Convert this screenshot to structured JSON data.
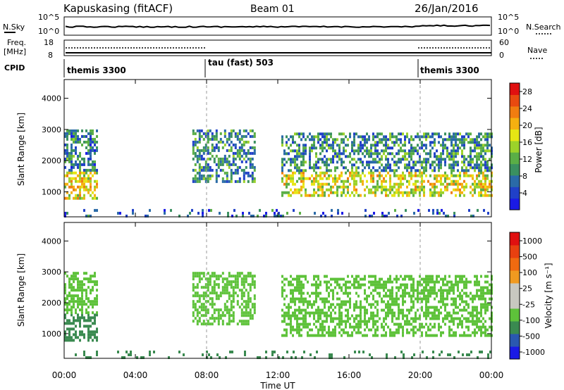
{
  "header": {
    "station": "Kapuskasing (fitACF)",
    "beam": "Beam 01",
    "date": "26/Jan/2016"
  },
  "panels": {
    "nsky": {
      "label": "N.Sky",
      "left_ticks": [
        "10^5",
        "10^0"
      ],
      "right_ticks": [
        "10^5",
        "10^0"
      ],
      "right_label": "N.Search"
    },
    "freq": {
      "label_top": "Freq.",
      "label_unit": "[MHz]",
      "left_ticks": [
        "18",
        "8"
      ],
      "right_ticks": [
        "60",
        "0"
      ],
      "right_label": "Nave"
    },
    "cpid": {
      "label": "CPID",
      "segments": [
        {
          "text": "themis 3300",
          "start_hour": 0
        },
        {
          "text": "tau (fast) 503",
          "start_hour": 8
        },
        {
          "text": "themis 3300",
          "start_hour": 20
        }
      ]
    }
  },
  "chart_data": [
    {
      "type": "heatmap",
      "name_key": "power",
      "ylabel": "Slant Range [km]",
      "ylim": [
        200,
        4600
      ],
      "y_ticks": [
        1000,
        2000,
        3000,
        4000
      ],
      "xlim_hours": [
        0,
        24
      ],
      "colorbar": {
        "label": "Power [dB]",
        "ticks": [
          4,
          8,
          12,
          16,
          20,
          24,
          28
        ],
        "range": [
          0,
          30
        ],
        "colors": [
          "#1a1ae6",
          "#2040c8",
          "#2a6aa8",
          "#3a9060",
          "#5aae46",
          "#9cd22a",
          "#e6e614",
          "#f5b010",
          "#f07d10",
          "#e84a10",
          "#e01010"
        ]
      },
      "regions": [
        {
          "t": [
            0.0,
            1.9
          ],
          "r": [
            750,
            1650
          ],
          "val": 18
        },
        {
          "t": [
            0.0,
            1.9
          ],
          "r": [
            1650,
            3000
          ],
          "val": 8
        },
        {
          "t": [
            7.2,
            10.7
          ],
          "r": [
            1300,
            3000
          ],
          "val": 9
        },
        {
          "t": [
            12.2,
            24.0
          ],
          "r": [
            900,
            1650
          ],
          "val": 17
        },
        {
          "t": [
            12.2,
            24.0
          ],
          "r": [
            1650,
            2900
          ],
          "val": 9
        },
        {
          "t": [
            0.0,
            24.0
          ],
          "r": [
            200,
            450
          ],
          "val": 6
        }
      ]
    },
    {
      "type": "heatmap",
      "name_key": "velocity",
      "ylabel": "Slant Range [km]",
      "ylim": [
        200,
        4600
      ],
      "y_ticks": [
        1000,
        2000,
        3000,
        4000
      ],
      "xlim_hours": [
        0,
        24
      ],
      "colorbar": {
        "label": "Velocity [m s⁻¹]",
        "ticks": [
          "1000",
          "500",
          "100",
          "25",
          "-25",
          "-100",
          "-500",
          "-1000"
        ],
        "colors": [
          "#1a1ae6",
          "#2a58b0",
          "#3a8a50",
          "#5ec23a",
          "#c8c8c0",
          "#c8c8c0",
          "#f09a20",
          "#f06a10",
          "#e84010",
          "#e01010"
        ]
      },
      "regions": [
        {
          "t": [
            0.0,
            1.9
          ],
          "r": [
            750,
            1650
          ],
          "val": "100"
        },
        {
          "t": [
            0.0,
            1.9
          ],
          "r": [
            1650,
            3000
          ],
          "val": "25"
        },
        {
          "t": [
            7.2,
            10.7
          ],
          "r": [
            1300,
            3000
          ],
          "val": "25"
        },
        {
          "t": [
            12.2,
            24.0
          ],
          "r": [
            900,
            2900
          ],
          "val": "25"
        },
        {
          "t": [
            0.0,
            24.0
          ],
          "r": [
            200,
            450
          ],
          "val": "100"
        }
      ]
    }
  ],
  "x_axis": {
    "ticks": [
      "00:00",
      "04:00",
      "08:00",
      "12:00",
      "16:00",
      "20:00",
      "00:00"
    ],
    "label": "Time UT"
  }
}
